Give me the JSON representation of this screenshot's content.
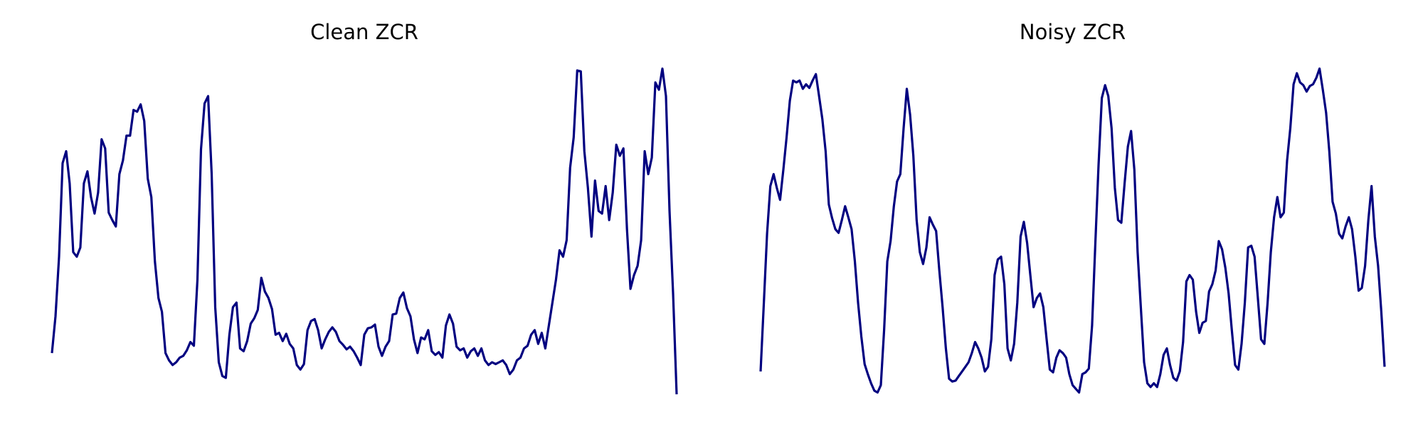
{
  "chart_data": [
    {
      "type": "line",
      "title": "Clean ZCR",
      "color": "#000080",
      "ylim": [
        0,
        370
      ],
      "values": [
        55,
        95,
        160,
        262,
        275,
        240,
        165,
        160,
        170,
        240,
        253,
        225,
        207,
        230,
        288,
        278,
        208,
        200,
        193,
        250,
        265,
        292,
        292,
        320,
        318,
        326,
        308,
        245,
        225,
        155,
        115,
        100,
        55,
        47,
        42,
        45,
        50,
        52,
        58,
        67,
        63,
        135,
        277,
        327,
        335,
        250,
        105,
        45,
        30,
        28,
        75,
        105,
        110,
        60,
        57,
        68,
        87,
        93,
        102,
        137,
        122,
        115,
        103,
        75,
        77,
        68,
        76,
        65,
        60,
        42,
        37,
        43,
        80,
        90,
        92,
        80,
        60,
        70,
        78,
        83,
        78,
        68,
        64,
        59,
        62,
        57,
        50,
        42,
        75,
        82,
        83,
        86,
        62,
        52,
        62,
        68,
        97,
        98,
        115,
        121,
        104,
        95,
        70,
        55,
        72,
        70,
        80,
        57,
        53,
        56,
        50,
        85,
        97,
        87,
        62,
        58,
        60,
        50,
        57,
        60,
        52,
        60,
        47,
        42,
        45,
        43,
        45,
        47,
        42,
        32,
        37,
        47,
        50,
        60,
        63,
        75,
        80,
        65,
        77,
        60,
        85,
        110,
        135,
        167,
        160,
        178,
        257,
        290,
        363,
        362,
        275,
        235,
        182,
        243,
        210,
        207,
        237,
        200,
        230,
        282,
        270,
        278,
        190,
        125,
        140,
        150,
        178,
        275,
        250,
        268,
        350,
        342,
        365,
        335,
        210,
        120,
        10
      ]
    },
    {
      "type": "line",
      "title": "Noisy ZCR",
      "color": "#000080",
      "ylim": [
        0,
        370
      ],
      "values": [
        35,
        110,
        185,
        237,
        250,
        235,
        222,
        255,
        290,
        330,
        352,
        350,
        352,
        343,
        348,
        344,
        352,
        359,
        335,
        310,
        275,
        217,
        202,
        190,
        186,
        200,
        215,
        203,
        190,
        155,
        110,
        73,
        43,
        32,
        22,
        14,
        12,
        20,
        80,
        155,
        177,
        215,
        242,
        250,
        300,
        343,
        315,
        270,
        200,
        165,
        152,
        170,
        203,
        195,
        188,
        145,
        105,
        60,
        27,
        24,
        25,
        30,
        35,
        40,
        45,
        55,
        67,
        60,
        50,
        35,
        40,
        70,
        140,
        157,
        160,
        130,
        60,
        47,
        65,
        110,
        182,
        198,
        175,
        140,
        105,
        115,
        120,
        105,
        70,
        37,
        34,
        50,
        58,
        55,
        50,
        32,
        20,
        16,
        12,
        32,
        34,
        38,
        85,
        175,
        260,
        333,
        347,
        335,
        300,
        235,
        200,
        197,
        240,
        280,
        297,
        255,
        165,
        105,
        45,
        22,
        18,
        22,
        18,
        32,
        53,
        60,
        42,
        28,
        25,
        35,
        67,
        133,
        140,
        135,
        100,
        77,
        88,
        90,
        122,
        130,
        145,
        177,
        168,
        148,
        120,
        80,
        42,
        37,
        65,
        110,
        170,
        172,
        160,
        115,
        70,
        65,
        110,
        165,
        203,
        225,
        203,
        208,
        265,
        300,
        348,
        360,
        350,
        347,
        340,
        346,
        348,
        355,
        365,
        342,
        317,
        275,
        220,
        207,
        185,
        180,
        193,
        203,
        190,
        160,
        123,
        126,
        150,
        200,
        237,
        182,
        150,
        100,
        40
      ]
    }
  ]
}
